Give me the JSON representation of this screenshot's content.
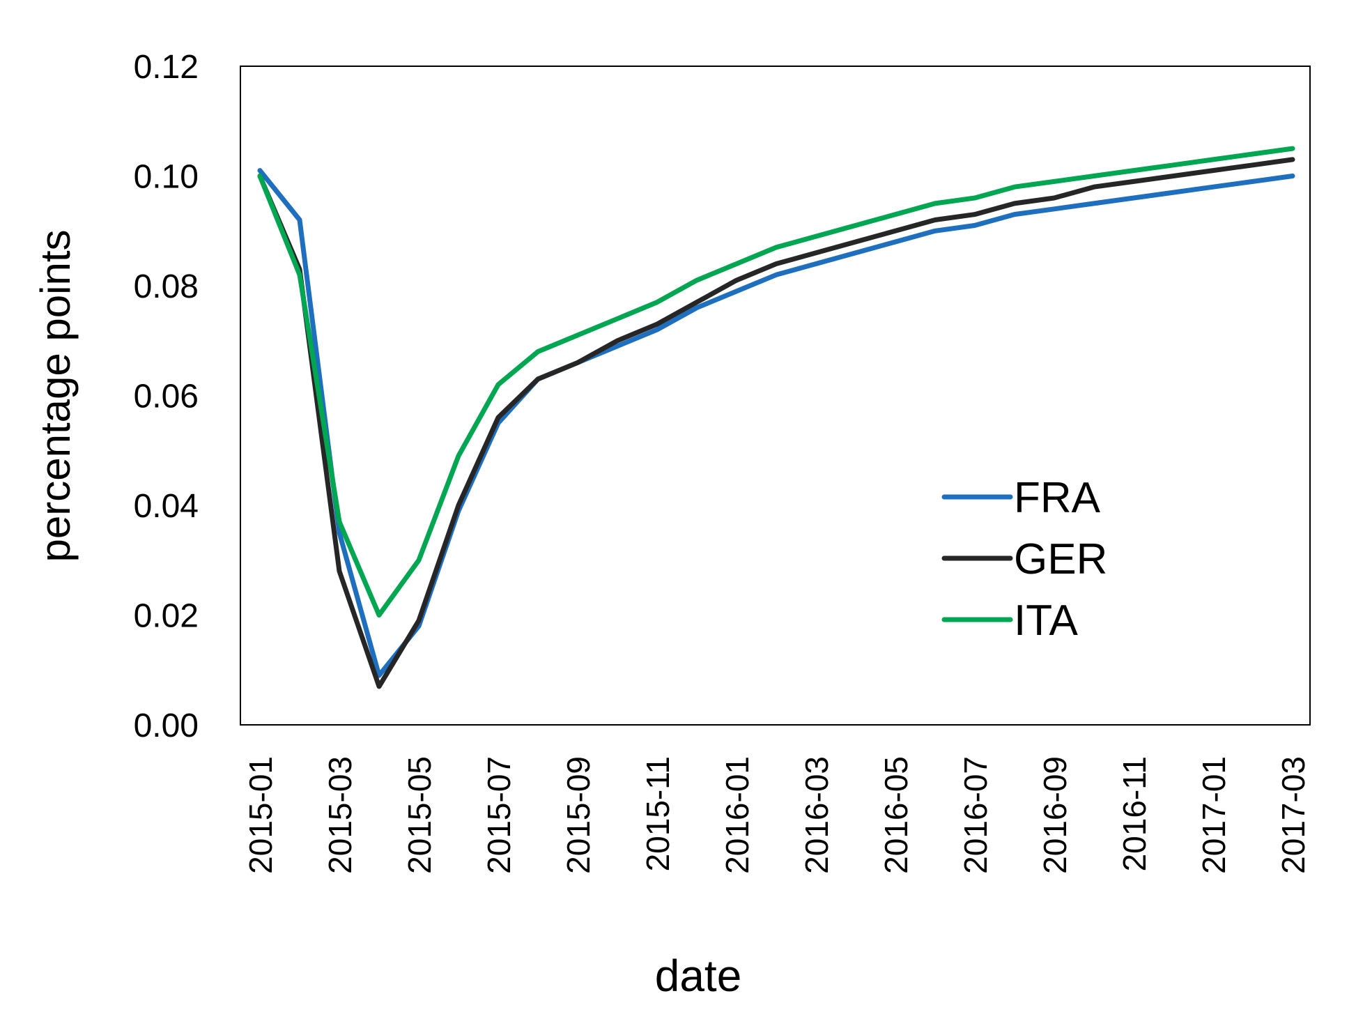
{
  "chart_data": {
    "type": "line",
    "title": "",
    "xlabel": "date",
    "ylabel": "percentage points",
    "ylim": [
      0,
      0.12
    ],
    "yticks": [
      "0.00",
      "0.02",
      "0.04",
      "0.06",
      "0.08",
      "0.10",
      "0.12"
    ],
    "x": [
      "2015-01",
      "2015-02",
      "2015-03",
      "2015-04",
      "2015-05",
      "2015-06",
      "2015-07",
      "2015-08",
      "2015-09",
      "2015-10",
      "2015-11",
      "2015-12",
      "2016-01",
      "2016-02",
      "2016-03",
      "2016-04",
      "2016-05",
      "2016-06",
      "2016-07",
      "2016-08",
      "2016-09",
      "2016-10",
      "2016-11",
      "2016-12",
      "2017-01",
      "2017-02",
      "2017-03"
    ],
    "xtick_labels": [
      "2015-01",
      "2015-03",
      "2015-05",
      "2015-07",
      "2015-09",
      "2015-11",
      "2016-01",
      "2016-03",
      "2016-05",
      "2016-07",
      "2016-09",
      "2016-11",
      "2017-01",
      "2017-03"
    ],
    "grid": false,
    "legend_position": "lower-right",
    "series": [
      {
        "name": "FRA",
        "color": "#1f6fbf",
        "values": [
          0.101,
          0.092,
          0.035,
          0.009,
          0.018,
          0.039,
          0.055,
          0.063,
          0.066,
          0.069,
          0.072,
          0.076,
          0.079,
          0.082,
          0.084,
          0.086,
          0.088,
          0.09,
          0.091,
          0.093,
          0.094,
          0.095,
          0.096,
          0.097,
          0.098,
          0.099,
          0.1
        ]
      },
      {
        "name": "GER",
        "color": "#262626",
        "values": [
          0.1,
          0.083,
          0.028,
          0.007,
          0.019,
          0.04,
          0.056,
          0.063,
          0.066,
          0.07,
          0.073,
          0.077,
          0.081,
          0.084,
          0.086,
          0.088,
          0.09,
          0.092,
          0.093,
          0.095,
          0.096,
          0.098,
          0.099,
          0.1,
          0.101,
          0.102,
          0.103
        ]
      },
      {
        "name": "ITA",
        "color": "#00a651",
        "values": [
          0.1,
          0.082,
          0.037,
          0.02,
          0.03,
          0.049,
          0.062,
          0.068,
          0.071,
          0.074,
          0.077,
          0.081,
          0.084,
          0.087,
          0.089,
          0.091,
          0.093,
          0.095,
          0.096,
          0.098,
          0.099,
          0.1,
          0.101,
          0.102,
          0.103,
          0.104,
          0.105
        ]
      }
    ]
  }
}
